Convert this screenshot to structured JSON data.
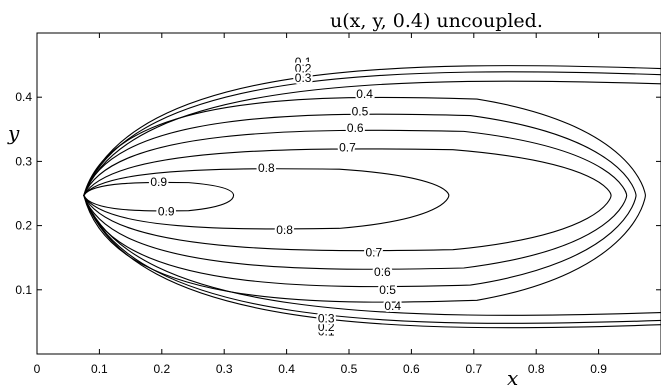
{
  "chart_data": {
    "type": "contour",
    "title": "u(x, y, 0.4)    uncoupled.",
    "xlabel": "x",
    "ylabel": "y",
    "xlim": [
      0,
      1
    ],
    "ylim": [
      0,
      0.5
    ],
    "grid": false,
    "x_ticks": [
      "0",
      "0.1",
      "0.2",
      "0.3",
      "0.4",
      "0.5",
      "0.6",
      "0.7",
      "0.8",
      "0.9"
    ],
    "y_ticks": [
      "0.1",
      "0.2",
      "0.3",
      "0.4"
    ],
    "x_tick_values": [
      0,
      0.1,
      0.2,
      0.3,
      0.4,
      0.5,
      0.6,
      0.7,
      0.8,
      0.9
    ],
    "y_tick_values": [
      0.1,
      0.2,
      0.3,
      0.4
    ],
    "source_point": [
      0.075,
      0.247
    ],
    "levels": [
      {
        "value": 0.1,
        "label": "0.1",
        "x_end": 1.0,
        "y_top": 0.455,
        "y_bot": 0.035
      },
      {
        "value": 0.2,
        "label": "0.2",
        "x_end": 1.0,
        "y_top": 0.445,
        "y_bot": 0.042
      },
      {
        "value": 0.3,
        "label": "0.3",
        "x_end": 1.0,
        "y_top": 0.43,
        "y_bot": 0.055
      },
      {
        "value": 0.4,
        "label": "0.4",
        "x_end": 0.975,
        "y_top": 0.405,
        "y_bot": 0.075
      },
      {
        "value": 0.5,
        "label": "0.5",
        "x_end": 0.96,
        "y_top": 0.378,
        "y_bot": 0.1
      },
      {
        "value": 0.6,
        "label": "0.6",
        "x_end": 0.945,
        "y_top": 0.352,
        "y_bot": 0.128
      },
      {
        "value": 0.7,
        "label": "0.7",
        "x_end": 0.92,
        "y_top": 0.322,
        "y_bot": 0.158
      },
      {
        "value": 0.8,
        "label": "0.8",
        "x_end": 0.66,
        "y_top": 0.29,
        "y_bot": 0.193
      },
      {
        "value": 0.9,
        "label": "0.9",
        "x_end": 0.315,
        "y_top": 0.268,
        "y_bot": 0.222
      }
    ]
  }
}
